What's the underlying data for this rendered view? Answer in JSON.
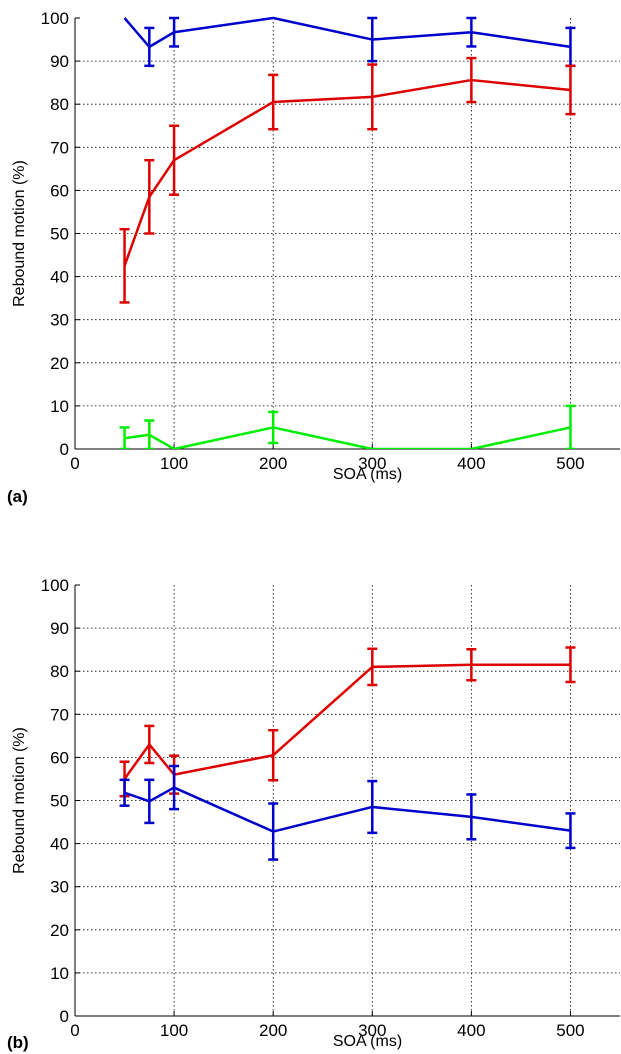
{
  "chart_data": [
    {
      "type": "line",
      "panel_label": "(a)",
      "xlabel": "SOA (ms)",
      "ylabel": "Rebound motion (%)",
      "xlim": [
        0,
        550
      ],
      "ylim": [
        0,
        100
      ],
      "xticks": [
        0,
        100,
        200,
        300,
        400,
        500
      ],
      "yticks": [
        0,
        10,
        20,
        30,
        40,
        50,
        60,
        70,
        80,
        90,
        100
      ],
      "grid": true,
      "series": [
        {
          "color": "#0000cc",
          "x": [
            50,
            75,
            100,
            200,
            300,
            400,
            500
          ],
          "y": [
            100,
            93.3,
            96.7,
            100,
            95,
            96.7,
            93.3
          ],
          "err": [
            0,
            4.4,
            3.3,
            0,
            5,
            3.3,
            4.4
          ]
        },
        {
          "color": "#dd0000",
          "x": [
            50,
            75,
            100,
            200,
            300,
            400,
            500
          ],
          "y": [
            42.5,
            58.5,
            67,
            80.5,
            81.7,
            85.6,
            83.3
          ],
          "err": [
            8.5,
            8.5,
            8,
            6.3,
            7.5,
            5.1,
            5.6
          ]
        },
        {
          "color": "#00ee00",
          "x": [
            50,
            75,
            100,
            200,
            300,
            400,
            500
          ],
          "y": [
            2.5,
            3.3,
            0,
            5,
            0,
            0,
            5
          ],
          "err": [
            2.5,
            3.3,
            0,
            3.6,
            0,
            0,
            5
          ]
        }
      ]
    },
    {
      "type": "line",
      "panel_label": "(b)",
      "xlabel": "SOA (ms)",
      "ylabel": "Rebound motion (%)",
      "xlim": [
        0,
        550
      ],
      "ylim": [
        0,
        100
      ],
      "xticks": [
        0,
        100,
        200,
        300,
        400,
        500
      ],
      "yticks": [
        0,
        10,
        20,
        30,
        40,
        50,
        60,
        70,
        80,
        90,
        100
      ],
      "grid": true,
      "series": [
        {
          "color": "#dd0000",
          "x": [
            50,
            75,
            100,
            200,
            300,
            400,
            500
          ],
          "y": [
            55,
            63,
            56,
            60.5,
            81,
            81.5,
            81.5
          ],
          "err": [
            4,
            4.3,
            4.4,
            5.8,
            4.2,
            3.6,
            4
          ]
        },
        {
          "color": "#0000cc",
          "x": [
            50,
            75,
            100,
            200,
            300,
            400,
            500
          ],
          "y": [
            51.8,
            49.8,
            53,
            42.8,
            48.5,
            46.2,
            43
          ],
          "err": [
            3,
            5,
            5,
            6.5,
            6,
            5.2,
            4
          ]
        }
      ]
    }
  ]
}
